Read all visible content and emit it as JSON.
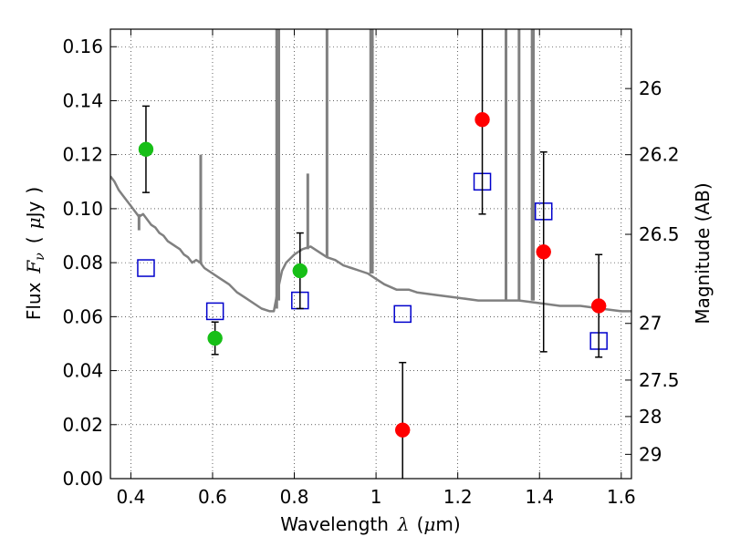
{
  "chart_data": {
    "type": "scatter",
    "xlabel": {
      "text": "Wavelength",
      "symbol": "λ",
      "unit_open": "(",
      "unit_mu": "μ",
      "unit_rest": "m)"
    },
    "ylabel": {
      "text": "Flux",
      "symbol": "F",
      "sub": "ν",
      "unit_open": "(",
      "unit_mu": "μ",
      "unit_rest": "Jy",
      "unit_close": ")"
    },
    "y2label": "Magnitude (AB)",
    "xlim": [
      0.35,
      1.625
    ],
    "ylim": [
      0.0,
      0.1665
    ],
    "grid": true,
    "x_ticks": [
      {
        "value": 0.4,
        "label": "0.4"
      },
      {
        "value": 0.6,
        "label": "0.6"
      },
      {
        "value": 0.8,
        "label": "0.8"
      },
      {
        "value": 1.0,
        "label": "1"
      },
      {
        "value": 1.2,
        "label": "1.2"
      },
      {
        "value": 1.4,
        "label": "1.4"
      },
      {
        "value": 1.6,
        "label": "1.6"
      }
    ],
    "y_ticks": [
      {
        "value": 0.0,
        "label": "0.00"
      },
      {
        "value": 0.02,
        "label": "0.02"
      },
      {
        "value": 0.04,
        "label": "0.04"
      },
      {
        "value": 0.06,
        "label": "0.06"
      },
      {
        "value": 0.08,
        "label": "0.08"
      },
      {
        "value": 0.1,
        "label": "0.10"
      },
      {
        "value": 0.12,
        "label": "0.12"
      },
      {
        "value": 0.14,
        "label": "0.14"
      },
      {
        "value": 0.16,
        "label": "0.16"
      }
    ],
    "y2_ticks": [
      {
        "flux": 0.1445,
        "label": "26"
      },
      {
        "flux": 0.12,
        "label": "26.2"
      },
      {
        "flux": 0.0905,
        "label": "26.5"
      },
      {
        "flux": 0.0575,
        "label": "27"
      },
      {
        "flux": 0.0365,
        "label": "27.5"
      },
      {
        "flux": 0.023,
        "label": "28"
      },
      {
        "flux": 0.009,
        "label": "29"
      }
    ],
    "series": [
      {
        "kind": "spectrum",
        "color": "#808080",
        "points": [
          [
            0.35,
            0.112
          ],
          [
            0.36,
            0.11
          ],
          [
            0.37,
            0.107
          ],
          [
            0.38,
            0.105
          ],
          [
            0.39,
            0.103
          ],
          [
            0.4,
            0.101
          ],
          [
            0.41,
            0.099
          ],
          [
            0.42,
            0.097
          ],
          [
            0.43,
            0.098
          ],
          [
            0.44,
            0.096
          ],
          [
            0.45,
            0.094
          ],
          [
            0.46,
            0.093
          ],
          [
            0.47,
            0.091
          ],
          [
            0.48,
            0.09
          ],
          [
            0.49,
            0.088
          ],
          [
            0.5,
            0.087
          ],
          [
            0.51,
            0.086
          ],
          [
            0.52,
            0.085
          ],
          [
            0.53,
            0.083
          ],
          [
            0.54,
            0.082
          ],
          [
            0.55,
            0.08
          ],
          [
            0.56,
            0.081
          ],
          [
            0.57,
            0.08
          ],
          [
            0.58,
            0.078
          ],
          [
            0.6,
            0.076
          ],
          [
            0.62,
            0.074
          ],
          [
            0.64,
            0.072
          ],
          [
            0.66,
            0.069
          ],
          [
            0.68,
            0.067
          ],
          [
            0.7,
            0.065
          ],
          [
            0.72,
            0.063
          ],
          [
            0.74,
            0.062
          ],
          [
            0.75,
            0.062
          ],
          [
            0.76,
            0.07
          ],
          [
            0.77,
            0.077
          ],
          [
            0.78,
            0.08
          ],
          [
            0.8,
            0.083
          ],
          [
            0.82,
            0.085
          ],
          [
            0.84,
            0.086
          ],
          [
            0.86,
            0.084
          ],
          [
            0.88,
            0.082
          ],
          [
            0.9,
            0.081
          ],
          [
            0.92,
            0.079
          ],
          [
            0.94,
            0.078
          ],
          [
            0.96,
            0.077
          ],
          [
            0.98,
            0.076
          ],
          [
            1.0,
            0.074
          ],
          [
            1.02,
            0.072
          ],
          [
            1.05,
            0.07
          ],
          [
            1.08,
            0.07
          ],
          [
            1.1,
            0.069
          ],
          [
            1.15,
            0.068
          ],
          [
            1.2,
            0.067
          ],
          [
            1.25,
            0.066
          ],
          [
            1.3,
            0.066
          ],
          [
            1.35,
            0.066
          ],
          [
            1.4,
            0.065
          ],
          [
            1.45,
            0.064
          ],
          [
            1.5,
            0.064
          ],
          [
            1.55,
            0.063
          ],
          [
            1.6,
            0.062
          ],
          [
            1.625,
            0.062
          ]
        ],
        "spikes": [
          {
            "x": 0.42,
            "top": 0.098,
            "base": 0.092
          },
          {
            "x": 0.571,
            "top": 0.12,
            "base": 0.08
          },
          {
            "x": 0.757,
            "top": 0.17,
            "base": 0.063
          },
          {
            "x": 0.762,
            "top": 0.17,
            "base": 0.066
          },
          {
            "x": 0.833,
            "top": 0.113,
            "base": 0.085
          },
          {
            "x": 0.88,
            "top": 0.17,
            "base": 0.082
          },
          {
            "x": 0.987,
            "top": 0.17,
            "base": 0.076
          },
          {
            "x": 0.991,
            "top": 0.17,
            "base": 0.076
          },
          {
            "x": 1.318,
            "top": 0.17,
            "base": 0.066
          },
          {
            "x": 1.35,
            "top": 0.17,
            "base": 0.066
          },
          {
            "x": 1.382,
            "top": 0.17,
            "base": 0.066
          },
          {
            "x": 1.385,
            "top": 0.17,
            "base": 0.066
          }
        ]
      },
      {
        "kind": "points",
        "marker": "circle",
        "color": "#17bf17",
        "points": [
          {
            "x": 0.437,
            "y": 0.122,
            "err": 0.016
          },
          {
            "x": 0.606,
            "y": 0.052,
            "err": 0.006
          },
          {
            "x": 0.814,
            "y": 0.077,
            "err": 0.014
          }
        ]
      },
      {
        "kind": "points",
        "marker": "circle",
        "color": "#ff0000",
        "points": [
          {
            "x": 1.065,
            "y": 0.018,
            "err": 0.025
          },
          {
            "x": 1.26,
            "y": 0.133,
            "err": 0.035
          },
          {
            "x": 1.41,
            "y": 0.084,
            "err": 0.037
          },
          {
            "x": 1.545,
            "y": 0.064,
            "err": 0.019
          }
        ]
      },
      {
        "kind": "points",
        "marker": "square",
        "color": "#0000cc",
        "points": [
          {
            "x": 0.437,
            "y": 0.078
          },
          {
            "x": 0.606,
            "y": 0.062
          },
          {
            "x": 0.814,
            "y": 0.066
          },
          {
            "x": 1.065,
            "y": 0.061
          },
          {
            "x": 1.26,
            "y": 0.11
          },
          {
            "x": 1.41,
            "y": 0.099
          },
          {
            "x": 1.545,
            "y": 0.051
          }
        ]
      }
    ]
  }
}
